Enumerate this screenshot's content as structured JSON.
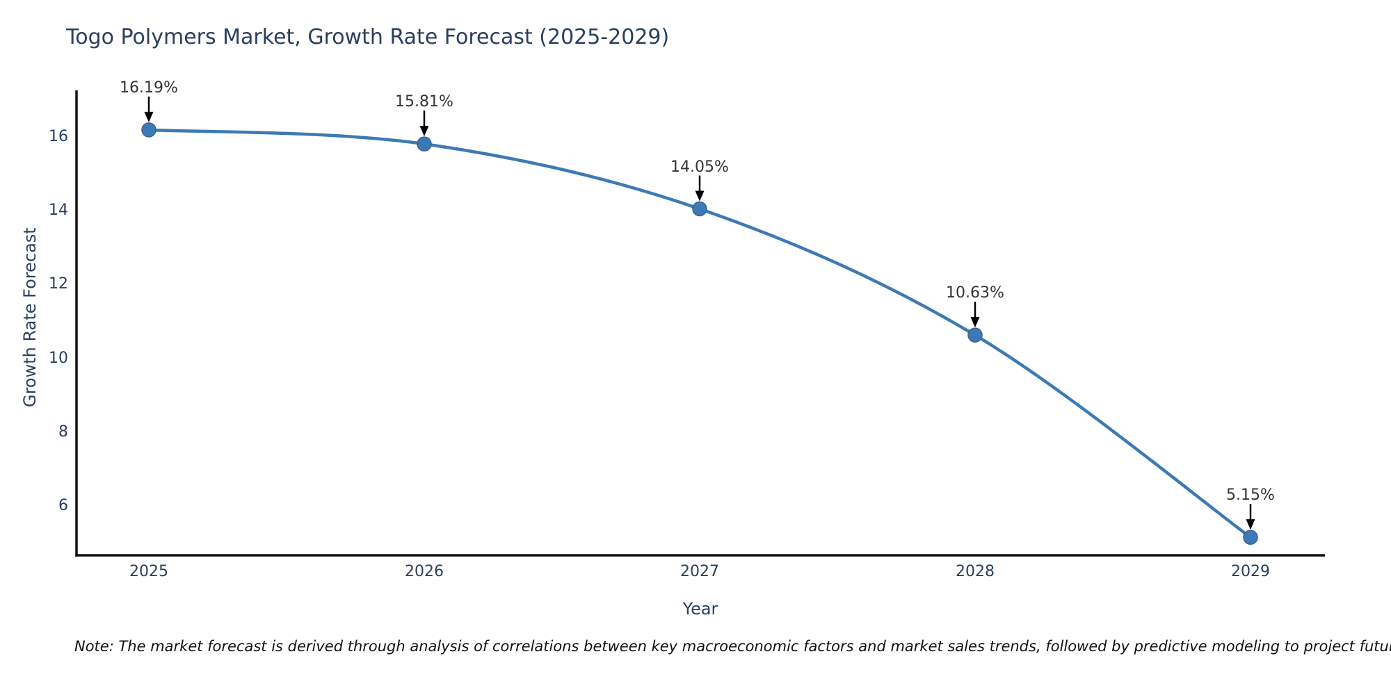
{
  "chart_data": {
    "type": "line",
    "title": "Togo Polymers Market, Growth Rate Forecast (2025-2029)",
    "categories": [
      "2025",
      "2026",
      "2027",
      "2028",
      "2029"
    ],
    "series": [
      {
        "name": "Growth Rate Forecast",
        "values": [
          16.19,
          15.81,
          14.05,
          10.63,
          5.15
        ]
      }
    ],
    "data_labels": [
      "16.19%",
      "15.81%",
      "14.05%",
      "10.63%",
      "5.15%"
    ],
    "xlabel": "Year",
    "ylabel": "Growth Rate Forecast",
    "yticks": [
      6,
      8,
      10,
      12,
      14,
      16
    ],
    "ylim": [
      4.66,
      17.26
    ],
    "grid": false,
    "legend": "none",
    "line_shape": "spline",
    "colors": {
      "line": "#3d7ab5",
      "marker": "#3d7ab5",
      "marker_edge": "#2f6398",
      "axis": "#111111",
      "tick_text": "#2a3f5f",
      "annotation_text": "#333333",
      "arrow": "#000000",
      "background": "#ffffff"
    }
  },
  "note": {
    "text": "Note: The market forecast is derived through analysis of correlations between key macroeconomic factors and market sales trends, followed by predictive modeling to project future sales"
  }
}
